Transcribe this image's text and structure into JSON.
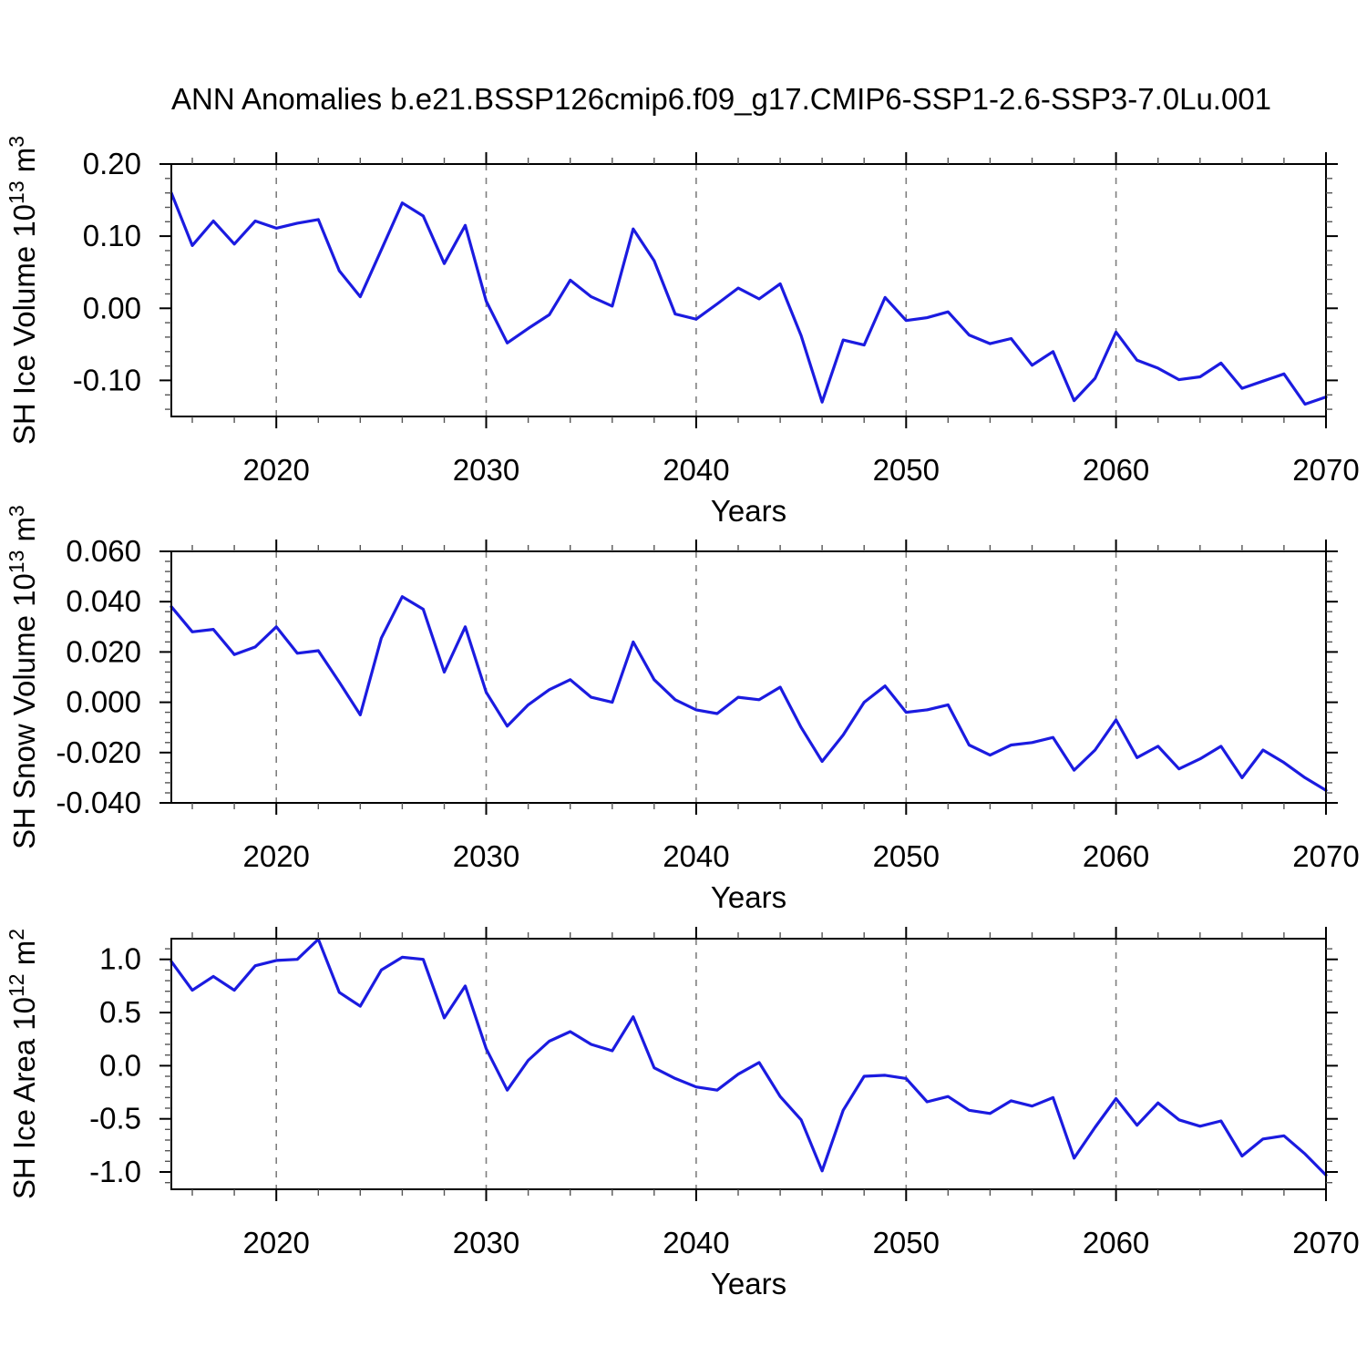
{
  "title": "ANN Anomalies b.e21.BSSP126cmip6.f09_g17.CMIP6-SSP1-2.6-SSP3-7.0Lu.001",
  "colors": {
    "line": "#1b1be0",
    "grid": "#7f7f7f",
    "axis": "#000000"
  },
  "chart_data": [
    {
      "type": "line",
      "id": "sh-ice-volume",
      "ylabel_plain": "SH Ice Volume 10^13 m^3",
      "ylabel_parts": [
        {
          "t": "SH Ice Volume 10",
          "sup": false
        },
        {
          "t": "13",
          "sup": true
        },
        {
          "t": " m",
          "sup": false
        },
        {
          "t": "3",
          "sup": true
        }
      ],
      "xlabel": "Years",
      "xlim": [
        2015,
        2070
      ],
      "ylim": [
        -0.15,
        0.2
      ],
      "xticks": [
        2020,
        2030,
        2040,
        2050,
        2060,
        2070
      ],
      "xtick_labels": [
        "2020",
        "2030",
        "2040",
        "2050",
        "2060",
        "2070"
      ],
      "xtick_minor_step": 2,
      "yticks": [
        0.2,
        0.1,
        0.0,
        -0.1
      ],
      "ytick_labels": [
        "0.20",
        "0.10",
        "0.00",
        "-0.10"
      ],
      "ytick_minor_step": 0.02,
      "gridlines_x": [
        2020,
        2030,
        2040,
        2050,
        2060
      ],
      "x": [
        2015,
        2016,
        2017,
        2018,
        2019,
        2020,
        2021,
        2022,
        2023,
        2024,
        2025,
        2026,
        2027,
        2028,
        2029,
        2030,
        2031,
        2032,
        2033,
        2034,
        2035,
        2036,
        2037,
        2038,
        2039,
        2040,
        2041,
        2042,
        2043,
        2044,
        2045,
        2046,
        2047,
        2048,
        2049,
        2050,
        2051,
        2052,
        2053,
        2054,
        2055,
        2056,
        2057,
        2058,
        2059,
        2060,
        2061,
        2062,
        2063,
        2064,
        2065,
        2066,
        2067,
        2068,
        2069,
        2070
      ],
      "values": [
        0.16,
        0.087,
        0.121,
        0.089,
        0.121,
        0.111,
        0.118,
        0.123,
        0.052,
        0.016,
        0.081,
        0.146,
        0.128,
        0.062,
        0.115,
        0.01,
        -0.048,
        -0.028,
        -0.009,
        0.039,
        0.016,
        0.003,
        0.11,
        0.066,
        -0.008,
        -0.015,
        0.006,
        0.028,
        0.013,
        0.034,
        -0.038,
        -0.13,
        -0.044,
        -0.051,
        0.015,
        -0.017,
        -0.013,
        -0.005,
        -0.037,
        -0.049,
        -0.042,
        -0.079,
        -0.06,
        -0.128,
        -0.097,
        -0.033,
        -0.072,
        -0.083,
        -0.099,
        -0.095,
        -0.076,
        -0.111,
        -0.101,
        -0.091,
        -0.133,
        -0.123
      ]
    },
    {
      "type": "line",
      "id": "sh-snow-volume",
      "ylabel_plain": "SH Snow Volume 10^13 m^3",
      "ylabel_parts": [
        {
          "t": "SH Snow Volume 10",
          "sup": false
        },
        {
          "t": "13",
          "sup": true
        },
        {
          "t": " m",
          "sup": false
        },
        {
          "t": "3",
          "sup": true
        }
      ],
      "xlabel": "Years",
      "xlim": [
        2015,
        2070
      ],
      "ylim": [
        -0.04,
        0.06
      ],
      "xticks": [
        2020,
        2030,
        2040,
        2050,
        2060,
        2070
      ],
      "xtick_labels": [
        "2020",
        "2030",
        "2040",
        "2050",
        "2060",
        "2070"
      ],
      "xtick_minor_step": 2,
      "yticks": [
        0.06,
        0.04,
        0.02,
        0.0,
        -0.02,
        -0.04
      ],
      "ytick_labels": [
        "0.060",
        "0.040",
        "0.020",
        "0.000",
        "-0.020",
        "-0.040"
      ],
      "ytick_minor_step": 0.004,
      "gridlines_x": [
        2020,
        2030,
        2040,
        2050,
        2060
      ],
      "x": [
        2015,
        2016,
        2017,
        2018,
        2019,
        2020,
        2021,
        2022,
        2023,
        2024,
        2025,
        2026,
        2027,
        2028,
        2029,
        2030,
        2031,
        2032,
        2033,
        2034,
        2035,
        2036,
        2037,
        2038,
        2039,
        2040,
        2041,
        2042,
        2043,
        2044,
        2045,
        2046,
        2047,
        2048,
        2049,
        2050,
        2051,
        2052,
        2053,
        2054,
        2055,
        2056,
        2057,
        2058,
        2059,
        2060,
        2061,
        2062,
        2063,
        2064,
        2065,
        2066,
        2067,
        2068,
        2069,
        2070
      ],
      "values": [
        0.038,
        0.028,
        0.029,
        0.019,
        0.022,
        0.03,
        0.0195,
        0.0205,
        0.008,
        -0.005,
        0.0255,
        0.042,
        0.037,
        0.012,
        0.03,
        0.004,
        -0.0095,
        -0.001,
        0.005,
        0.009,
        0.002,
        0.0,
        0.024,
        0.009,
        0.001,
        -0.003,
        -0.0045,
        0.002,
        0.001,
        0.006,
        -0.01,
        -0.0235,
        -0.013,
        0.0,
        0.0065,
        -0.004,
        -0.003,
        -0.001,
        -0.017,
        -0.021,
        -0.017,
        -0.016,
        -0.014,
        -0.027,
        -0.019,
        -0.007,
        -0.022,
        -0.0175,
        -0.0265,
        -0.0225,
        -0.0175,
        -0.03,
        -0.019,
        -0.024,
        -0.03,
        -0.035
      ]
    },
    {
      "type": "line",
      "id": "sh-ice-area",
      "ylabel_plain": "SH Ice Area 10^12 m^2",
      "ylabel_parts": [
        {
          "t": "SH Ice Area 10",
          "sup": false
        },
        {
          "t": "12",
          "sup": true
        },
        {
          "t": " m",
          "sup": false
        },
        {
          "t": "2",
          "sup": true
        }
      ],
      "xlabel": "Years",
      "xlim": [
        2015,
        2070
      ],
      "ylim": [
        -1.163,
        1.195
      ],
      "xticks": [
        2020,
        2030,
        2040,
        2050,
        2060,
        2070
      ],
      "xtick_labels": [
        "2020",
        "2030",
        "2040",
        "2050",
        "2060",
        "2070"
      ],
      "xtick_minor_step": 2,
      "yticks": [
        1.0,
        0.5,
        0.0,
        -0.5,
        -1.0
      ],
      "ytick_labels": [
        "1.0",
        "0.5",
        "0.0",
        "-0.5",
        "-1.0"
      ],
      "ytick_minor_step": 0.1,
      "gridlines_x": [
        2020,
        2030,
        2040,
        2050,
        2060
      ],
      "x": [
        2015,
        2016,
        2017,
        2018,
        2019,
        2020,
        2021,
        2022,
        2023,
        2024,
        2025,
        2026,
        2027,
        2028,
        2029,
        2030,
        2031,
        2032,
        2033,
        2034,
        2035,
        2036,
        2037,
        2038,
        2039,
        2040,
        2041,
        2042,
        2043,
        2044,
        2045,
        2046,
        2047,
        2048,
        2049,
        2050,
        2051,
        2052,
        2053,
        2054,
        2055,
        2056,
        2057,
        2058,
        2059,
        2060,
        2061,
        2062,
        2063,
        2064,
        2065,
        2066,
        2067,
        2068,
        2069,
        2070
      ],
      "values": [
        0.98,
        0.71,
        0.84,
        0.71,
        0.94,
        0.99,
        1.0,
        1.19,
        0.69,
        0.56,
        0.9,
        1.02,
        1.0,
        0.45,
        0.75,
        0.16,
        -0.23,
        0.05,
        0.23,
        0.32,
        0.2,
        0.14,
        0.46,
        -0.02,
        -0.12,
        -0.2,
        -0.23,
        -0.08,
        0.03,
        -0.29,
        -0.51,
        -0.99,
        -0.42,
        -0.1,
        -0.09,
        -0.12,
        -0.34,
        -0.29,
        -0.42,
        -0.45,
        -0.33,
        -0.38,
        -0.3,
        -0.87,
        -0.58,
        -0.31,
        -0.56,
        -0.35,
        -0.51,
        -0.57,
        -0.52,
        -0.85,
        -0.69,
        -0.66,
        -0.83,
        -1.03
      ]
    }
  ]
}
